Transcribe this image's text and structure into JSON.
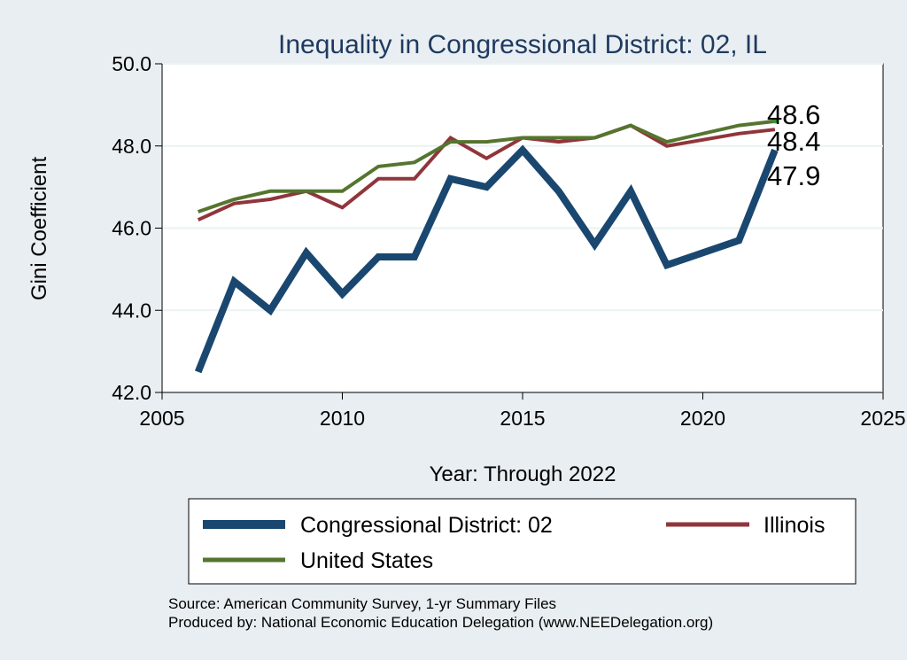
{
  "chart_data": {
    "type": "line",
    "title": "Inequality in Congressional District:  02, IL",
    "xlabel": "Year: Through 2022",
    "ylabel": "Gini Coefficient",
    "xlim": [
      2005,
      2025
    ],
    "ylim": [
      42.0,
      50.0
    ],
    "x_ticks": [
      2005,
      2010,
      2015,
      2020,
      2025
    ],
    "y_ticks": [
      42.0,
      44.0,
      46.0,
      48.0,
      50.0
    ],
    "grid": "horizontal",
    "legend_position": "bottom",
    "series": [
      {
        "name": "Congressional District:  02",
        "color": "#1a476f",
        "x": [
          2006,
          2007,
          2008,
          2009,
          2010,
          2011,
          2012,
          2013,
          2014,
          2015,
          2016,
          2017,
          2018,
          2019,
          2021,
          2022
        ],
        "values": [
          42.5,
          44.7,
          44.0,
          45.4,
          44.4,
          45.3,
          45.3,
          47.2,
          47.0,
          47.9,
          46.9,
          45.6,
          46.9,
          45.1,
          45.7,
          47.9
        ]
      },
      {
        "name": "Illinois",
        "color": "#90353b",
        "x": [
          2006,
          2007,
          2008,
          2009,
          2010,
          2011,
          2012,
          2013,
          2014,
          2015,
          2016,
          2017,
          2018,
          2019,
          2021,
          2022
        ],
        "values": [
          46.2,
          46.6,
          46.7,
          46.9,
          46.5,
          47.2,
          47.2,
          48.2,
          47.7,
          48.2,
          48.1,
          48.2,
          48.5,
          48.0,
          48.3,
          48.4
        ]
      },
      {
        "name": "United States",
        "color": "#55752f",
        "x": [
          2006,
          2007,
          2008,
          2009,
          2010,
          2011,
          2012,
          2013,
          2014,
          2015,
          2016,
          2017,
          2018,
          2019,
          2021,
          2022
        ],
        "values": [
          46.4,
          46.7,
          46.9,
          46.9,
          46.9,
          47.5,
          47.6,
          48.1,
          48.1,
          48.2,
          48.2,
          48.2,
          48.5,
          48.1,
          48.5,
          48.6
        ]
      }
    ],
    "end_labels": [
      "48.6",
      "48.4",
      "47.9"
    ],
    "source_lines": [
      "Source: American Community Survey, 1-yr Summary Files",
      "Produced by: National Economic Education Delegation (www.NEEDelegation.org)"
    ]
  }
}
